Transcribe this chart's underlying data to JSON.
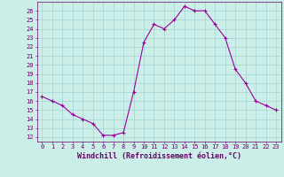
{
  "hours": [
    0,
    1,
    2,
    3,
    4,
    5,
    6,
    7,
    8,
    9,
    10,
    11,
    12,
    13,
    14,
    15,
    16,
    17,
    18,
    19,
    20,
    21,
    22,
    23
  ],
  "values": [
    16.5,
    16.0,
    15.5,
    14.5,
    14.0,
    13.5,
    12.2,
    12.2,
    12.5,
    17.0,
    22.5,
    24.5,
    24.0,
    25.0,
    26.5,
    26.0,
    26.0,
    24.5,
    23.0,
    19.5,
    18.0,
    16.0,
    15.5,
    15.0
  ],
  "line_color": "#990099",
  "marker": "+",
  "marker_color": "#990099",
  "bg_color": "#cceee8",
  "grid_color": "#99cccc",
  "axis_color": "#660066",
  "xlabel": "Windchill (Refroidissement éolien,°C)",
  "ylim": [
    11.5,
    27.0
  ],
  "xlim": [
    -0.5,
    23.5
  ],
  "yticks": [
    12,
    13,
    14,
    15,
    16,
    17,
    18,
    19,
    20,
    21,
    22,
    23,
    24,
    25,
    26
  ],
  "xticks": [
    0,
    1,
    2,
    3,
    4,
    5,
    6,
    7,
    8,
    9,
    10,
    11,
    12,
    13,
    14,
    15,
    16,
    17,
    18,
    19,
    20,
    21,
    22,
    23
  ],
  "tick_fontsize": 5.0,
  "xlabel_fontsize": 6.0,
  "line_width": 0.8,
  "marker_size": 2.5
}
